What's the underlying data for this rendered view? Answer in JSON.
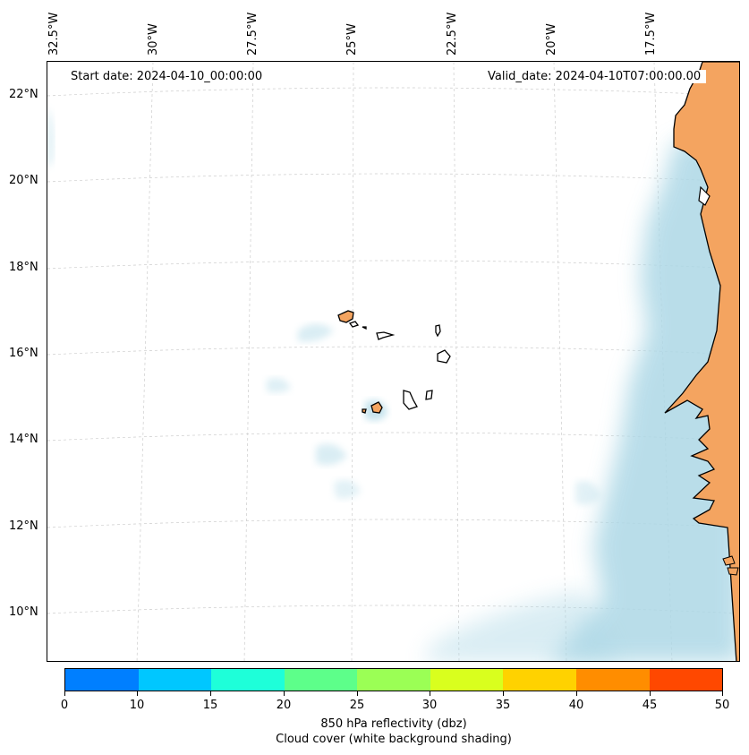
{
  "map": {
    "start_label": "Start date: 2024-04-10_00:00:00",
    "valid_label": "Valid_date: 2024-04-10T07:00:00.00",
    "longitude_labels": [
      "32.5°W",
      "30°W",
      "27.5°W",
      "25°W",
      "22.5°W",
      "20°W",
      "17.5°W"
    ],
    "latitude_labels": [
      "22°N",
      "20°N",
      "18°N",
      "16°N",
      "14°N",
      "12°N",
      "10°N"
    ],
    "colors": {
      "land": "#f4a460",
      "cloud": "#add8e6",
      "coastline": "#000000",
      "gridline": "#cccccc"
    }
  },
  "colorbar": {
    "caption_line1": "850 hPa reflectivity (dbz)",
    "caption_line2": "Cloud cover (white background shading)",
    "tick_labels": [
      "0",
      "10",
      "15",
      "20",
      "25",
      "30",
      "35",
      "40",
      "45",
      "50"
    ],
    "colors": [
      "#007fff",
      "#00c7ff",
      "#1effd9",
      "#5dff8a",
      "#9bff55",
      "#d9ff1e",
      "#ffd200",
      "#ff8d00",
      "#ff4800"
    ]
  }
}
